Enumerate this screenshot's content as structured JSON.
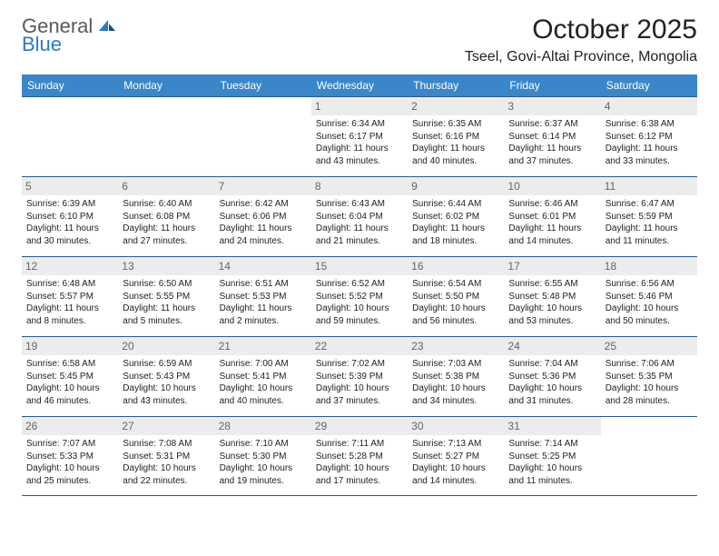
{
  "logo": {
    "part1": "General",
    "part2": "Blue"
  },
  "title": "October 2025",
  "subtitle": "Tseel, Govi-Altai Province, Mongolia",
  "accent_color": "#3a86c8",
  "border_color": "#2b5a8a",
  "daynum_bg": "#ececec",
  "weekdays": [
    "Sunday",
    "Monday",
    "Tuesday",
    "Wednesday",
    "Thursday",
    "Friday",
    "Saturday"
  ],
  "weeks": [
    [
      null,
      null,
      null,
      {
        "n": "1",
        "sr": "Sunrise: 6:34 AM",
        "ss": "Sunset: 6:17 PM",
        "d1": "Daylight: 11 hours",
        "d2": "and 43 minutes."
      },
      {
        "n": "2",
        "sr": "Sunrise: 6:35 AM",
        "ss": "Sunset: 6:16 PM",
        "d1": "Daylight: 11 hours",
        "d2": "and 40 minutes."
      },
      {
        "n": "3",
        "sr": "Sunrise: 6:37 AM",
        "ss": "Sunset: 6:14 PM",
        "d1": "Daylight: 11 hours",
        "d2": "and 37 minutes."
      },
      {
        "n": "4",
        "sr": "Sunrise: 6:38 AM",
        "ss": "Sunset: 6:12 PM",
        "d1": "Daylight: 11 hours",
        "d2": "and 33 minutes."
      }
    ],
    [
      {
        "n": "5",
        "sr": "Sunrise: 6:39 AM",
        "ss": "Sunset: 6:10 PM",
        "d1": "Daylight: 11 hours",
        "d2": "and 30 minutes."
      },
      {
        "n": "6",
        "sr": "Sunrise: 6:40 AM",
        "ss": "Sunset: 6:08 PM",
        "d1": "Daylight: 11 hours",
        "d2": "and 27 minutes."
      },
      {
        "n": "7",
        "sr": "Sunrise: 6:42 AM",
        "ss": "Sunset: 6:06 PM",
        "d1": "Daylight: 11 hours",
        "d2": "and 24 minutes."
      },
      {
        "n": "8",
        "sr": "Sunrise: 6:43 AM",
        "ss": "Sunset: 6:04 PM",
        "d1": "Daylight: 11 hours",
        "d2": "and 21 minutes."
      },
      {
        "n": "9",
        "sr": "Sunrise: 6:44 AM",
        "ss": "Sunset: 6:02 PM",
        "d1": "Daylight: 11 hours",
        "d2": "and 18 minutes."
      },
      {
        "n": "10",
        "sr": "Sunrise: 6:46 AM",
        "ss": "Sunset: 6:01 PM",
        "d1": "Daylight: 11 hours",
        "d2": "and 14 minutes."
      },
      {
        "n": "11",
        "sr": "Sunrise: 6:47 AM",
        "ss": "Sunset: 5:59 PM",
        "d1": "Daylight: 11 hours",
        "d2": "and 11 minutes."
      }
    ],
    [
      {
        "n": "12",
        "sr": "Sunrise: 6:48 AM",
        "ss": "Sunset: 5:57 PM",
        "d1": "Daylight: 11 hours",
        "d2": "and 8 minutes."
      },
      {
        "n": "13",
        "sr": "Sunrise: 6:50 AM",
        "ss": "Sunset: 5:55 PM",
        "d1": "Daylight: 11 hours",
        "d2": "and 5 minutes."
      },
      {
        "n": "14",
        "sr": "Sunrise: 6:51 AM",
        "ss": "Sunset: 5:53 PM",
        "d1": "Daylight: 11 hours",
        "d2": "and 2 minutes."
      },
      {
        "n": "15",
        "sr": "Sunrise: 6:52 AM",
        "ss": "Sunset: 5:52 PM",
        "d1": "Daylight: 10 hours",
        "d2": "and 59 minutes."
      },
      {
        "n": "16",
        "sr": "Sunrise: 6:54 AM",
        "ss": "Sunset: 5:50 PM",
        "d1": "Daylight: 10 hours",
        "d2": "and 56 minutes."
      },
      {
        "n": "17",
        "sr": "Sunrise: 6:55 AM",
        "ss": "Sunset: 5:48 PM",
        "d1": "Daylight: 10 hours",
        "d2": "and 53 minutes."
      },
      {
        "n": "18",
        "sr": "Sunrise: 6:56 AM",
        "ss": "Sunset: 5:46 PM",
        "d1": "Daylight: 10 hours",
        "d2": "and 50 minutes."
      }
    ],
    [
      {
        "n": "19",
        "sr": "Sunrise: 6:58 AM",
        "ss": "Sunset: 5:45 PM",
        "d1": "Daylight: 10 hours",
        "d2": "and 46 minutes."
      },
      {
        "n": "20",
        "sr": "Sunrise: 6:59 AM",
        "ss": "Sunset: 5:43 PM",
        "d1": "Daylight: 10 hours",
        "d2": "and 43 minutes."
      },
      {
        "n": "21",
        "sr": "Sunrise: 7:00 AM",
        "ss": "Sunset: 5:41 PM",
        "d1": "Daylight: 10 hours",
        "d2": "and 40 minutes."
      },
      {
        "n": "22",
        "sr": "Sunrise: 7:02 AM",
        "ss": "Sunset: 5:39 PM",
        "d1": "Daylight: 10 hours",
        "d2": "and 37 minutes."
      },
      {
        "n": "23",
        "sr": "Sunrise: 7:03 AM",
        "ss": "Sunset: 5:38 PM",
        "d1": "Daylight: 10 hours",
        "d2": "and 34 minutes."
      },
      {
        "n": "24",
        "sr": "Sunrise: 7:04 AM",
        "ss": "Sunset: 5:36 PM",
        "d1": "Daylight: 10 hours",
        "d2": "and 31 minutes."
      },
      {
        "n": "25",
        "sr": "Sunrise: 7:06 AM",
        "ss": "Sunset: 5:35 PM",
        "d1": "Daylight: 10 hours",
        "d2": "and 28 minutes."
      }
    ],
    [
      {
        "n": "26",
        "sr": "Sunrise: 7:07 AM",
        "ss": "Sunset: 5:33 PM",
        "d1": "Daylight: 10 hours",
        "d2": "and 25 minutes."
      },
      {
        "n": "27",
        "sr": "Sunrise: 7:08 AM",
        "ss": "Sunset: 5:31 PM",
        "d1": "Daylight: 10 hours",
        "d2": "and 22 minutes."
      },
      {
        "n": "28",
        "sr": "Sunrise: 7:10 AM",
        "ss": "Sunset: 5:30 PM",
        "d1": "Daylight: 10 hours",
        "d2": "and 19 minutes."
      },
      {
        "n": "29",
        "sr": "Sunrise: 7:11 AM",
        "ss": "Sunset: 5:28 PM",
        "d1": "Daylight: 10 hours",
        "d2": "and 17 minutes."
      },
      {
        "n": "30",
        "sr": "Sunrise: 7:13 AM",
        "ss": "Sunset: 5:27 PM",
        "d1": "Daylight: 10 hours",
        "d2": "and 14 minutes."
      },
      {
        "n": "31",
        "sr": "Sunrise: 7:14 AM",
        "ss": "Sunset: 5:25 PM",
        "d1": "Daylight: 10 hours",
        "d2": "and 11 minutes."
      },
      null
    ]
  ]
}
